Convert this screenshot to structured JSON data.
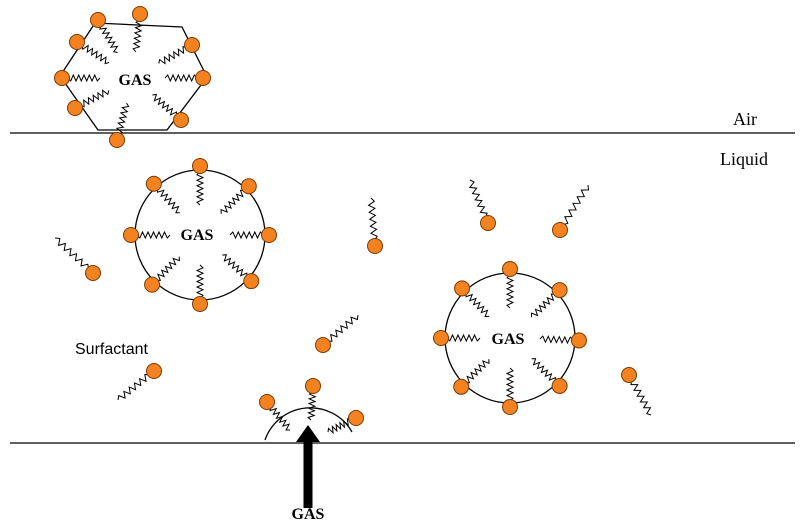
{
  "labels": {
    "air": "Air",
    "liquid": "Liquid",
    "surfactant": "Surfactant"
  },
  "bubbles": [
    {
      "label": "GAS"
    },
    {
      "label": "GAS"
    },
    {
      "label": "GAS"
    }
  ],
  "source": {
    "label": "GAS"
  }
}
